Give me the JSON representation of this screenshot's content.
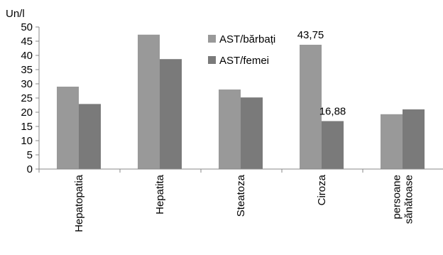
{
  "chart_data": {
    "type": "bar",
    "ylabel": "Un/l",
    "ylim": [
      0,
      50
    ],
    "yticks": [
      0,
      5,
      10,
      15,
      20,
      25,
      30,
      35,
      40,
      45,
      50
    ],
    "grid": false,
    "legend_position": "top-center",
    "categories": [
      [
        "Hepatopatia"
      ],
      [
        "Hepatita"
      ],
      [
        "Steatoza"
      ],
      [
        "Ciroza"
      ],
      [
        "persoane",
        "sănătoase"
      ]
    ],
    "series": [
      {
        "name": "AST/bărbați",
        "color": "#999999",
        "values": [
          29,
          47.3,
          28,
          43.75,
          19.3
        ]
      },
      {
        "name": "AST/femei",
        "color": "#7a7a7a",
        "values": [
          22.9,
          38.7,
          25.2,
          16.88,
          21
        ]
      }
    ],
    "data_labels": [
      {
        "series": 0,
        "index": 3,
        "text": "43,75"
      },
      {
        "series": 1,
        "index": 3,
        "text": "16,88"
      }
    ]
  }
}
